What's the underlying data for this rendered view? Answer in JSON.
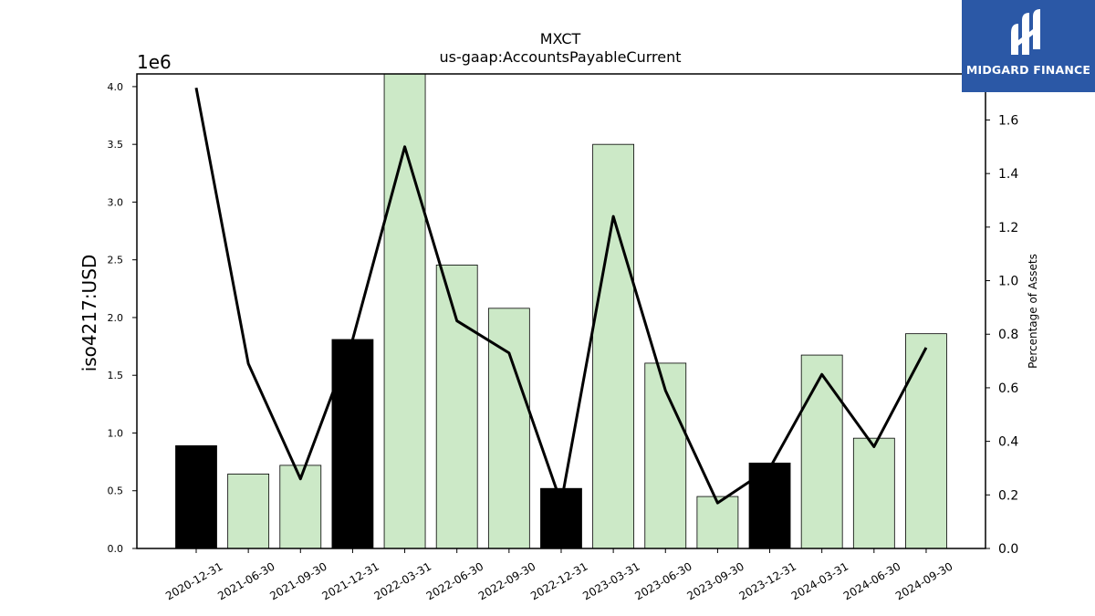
{
  "chart_data": {
    "type": "bar",
    "title": "MXCT",
    "subtitle": "us-gaap:AccountsPayableCurrent",
    "ylabel": "iso4217:USD",
    "y_offset_label": "1e6",
    "y2label": "Percentage of Assets",
    "categories": [
      "2020-12-31",
      "2021-06-30",
      "2021-09-30",
      "2021-12-31",
      "2022-03-31",
      "2022-06-30",
      "2022-09-30",
      "2022-12-31",
      "2023-03-31",
      "2023-06-30",
      "2023-09-30",
      "2023-12-31",
      "2024-03-31",
      "2024-06-30",
      "2024-09-30"
    ],
    "series": [
      {
        "type": "bar",
        "values": [
          890000,
          645000,
          720000,
          1810000,
          4110000,
          2455000,
          2080000,
          520000,
          3500000,
          1605000,
          450000,
          740000,
          1675000,
          955000,
          1860000
        ],
        "fill": [
          "#000000",
          "#cce9c7",
          "#cce9c7",
          "#000000",
          "#cce9c7",
          "#cce9c7",
          "#cce9c7",
          "#000000",
          "#cce9c7",
          "#cce9c7",
          "#cce9c7",
          "#000000",
          "#cce9c7",
          "#cce9c7",
          "#cce9c7"
        ]
      },
      {
        "type": "line",
        "axis": "right",
        "color": "#000000",
        "values": [
          1.72,
          0.69,
          0.26,
          0.78,
          1.5,
          0.85,
          0.73,
          0.17,
          1.24,
          0.59,
          0.17,
          0.3,
          0.65,
          0.38,
          0.75
        ]
      }
    ],
    "ylim": [
      0,
      4110000
    ],
    "y_ticks": [
      0,
      500000,
      1000000,
      1500000,
      2000000,
      2500000,
      3000000,
      3500000,
      4000000
    ],
    "y_tick_labels": [
      "0.0",
      "0.5",
      "1.0",
      "1.5",
      "2.0",
      "2.5",
      "3.0",
      "3.5",
      "4.0"
    ],
    "y2lim": [
      0,
      1.772
    ],
    "y2_ticks": [
      0,
      0.2,
      0.4,
      0.6,
      0.8,
      1.0,
      1.2,
      1.4,
      1.6
    ],
    "y2_tick_labels": [
      "0.0",
      "0.2",
      "0.4",
      "0.6",
      "0.8",
      "1.0",
      "1.2",
      "1.4",
      "1.6"
    ],
    "grid": false,
    "legend": "none"
  },
  "logo": {
    "text": "MIDGARD FINANCE",
    "icon": "midgard-logo-icon"
  }
}
